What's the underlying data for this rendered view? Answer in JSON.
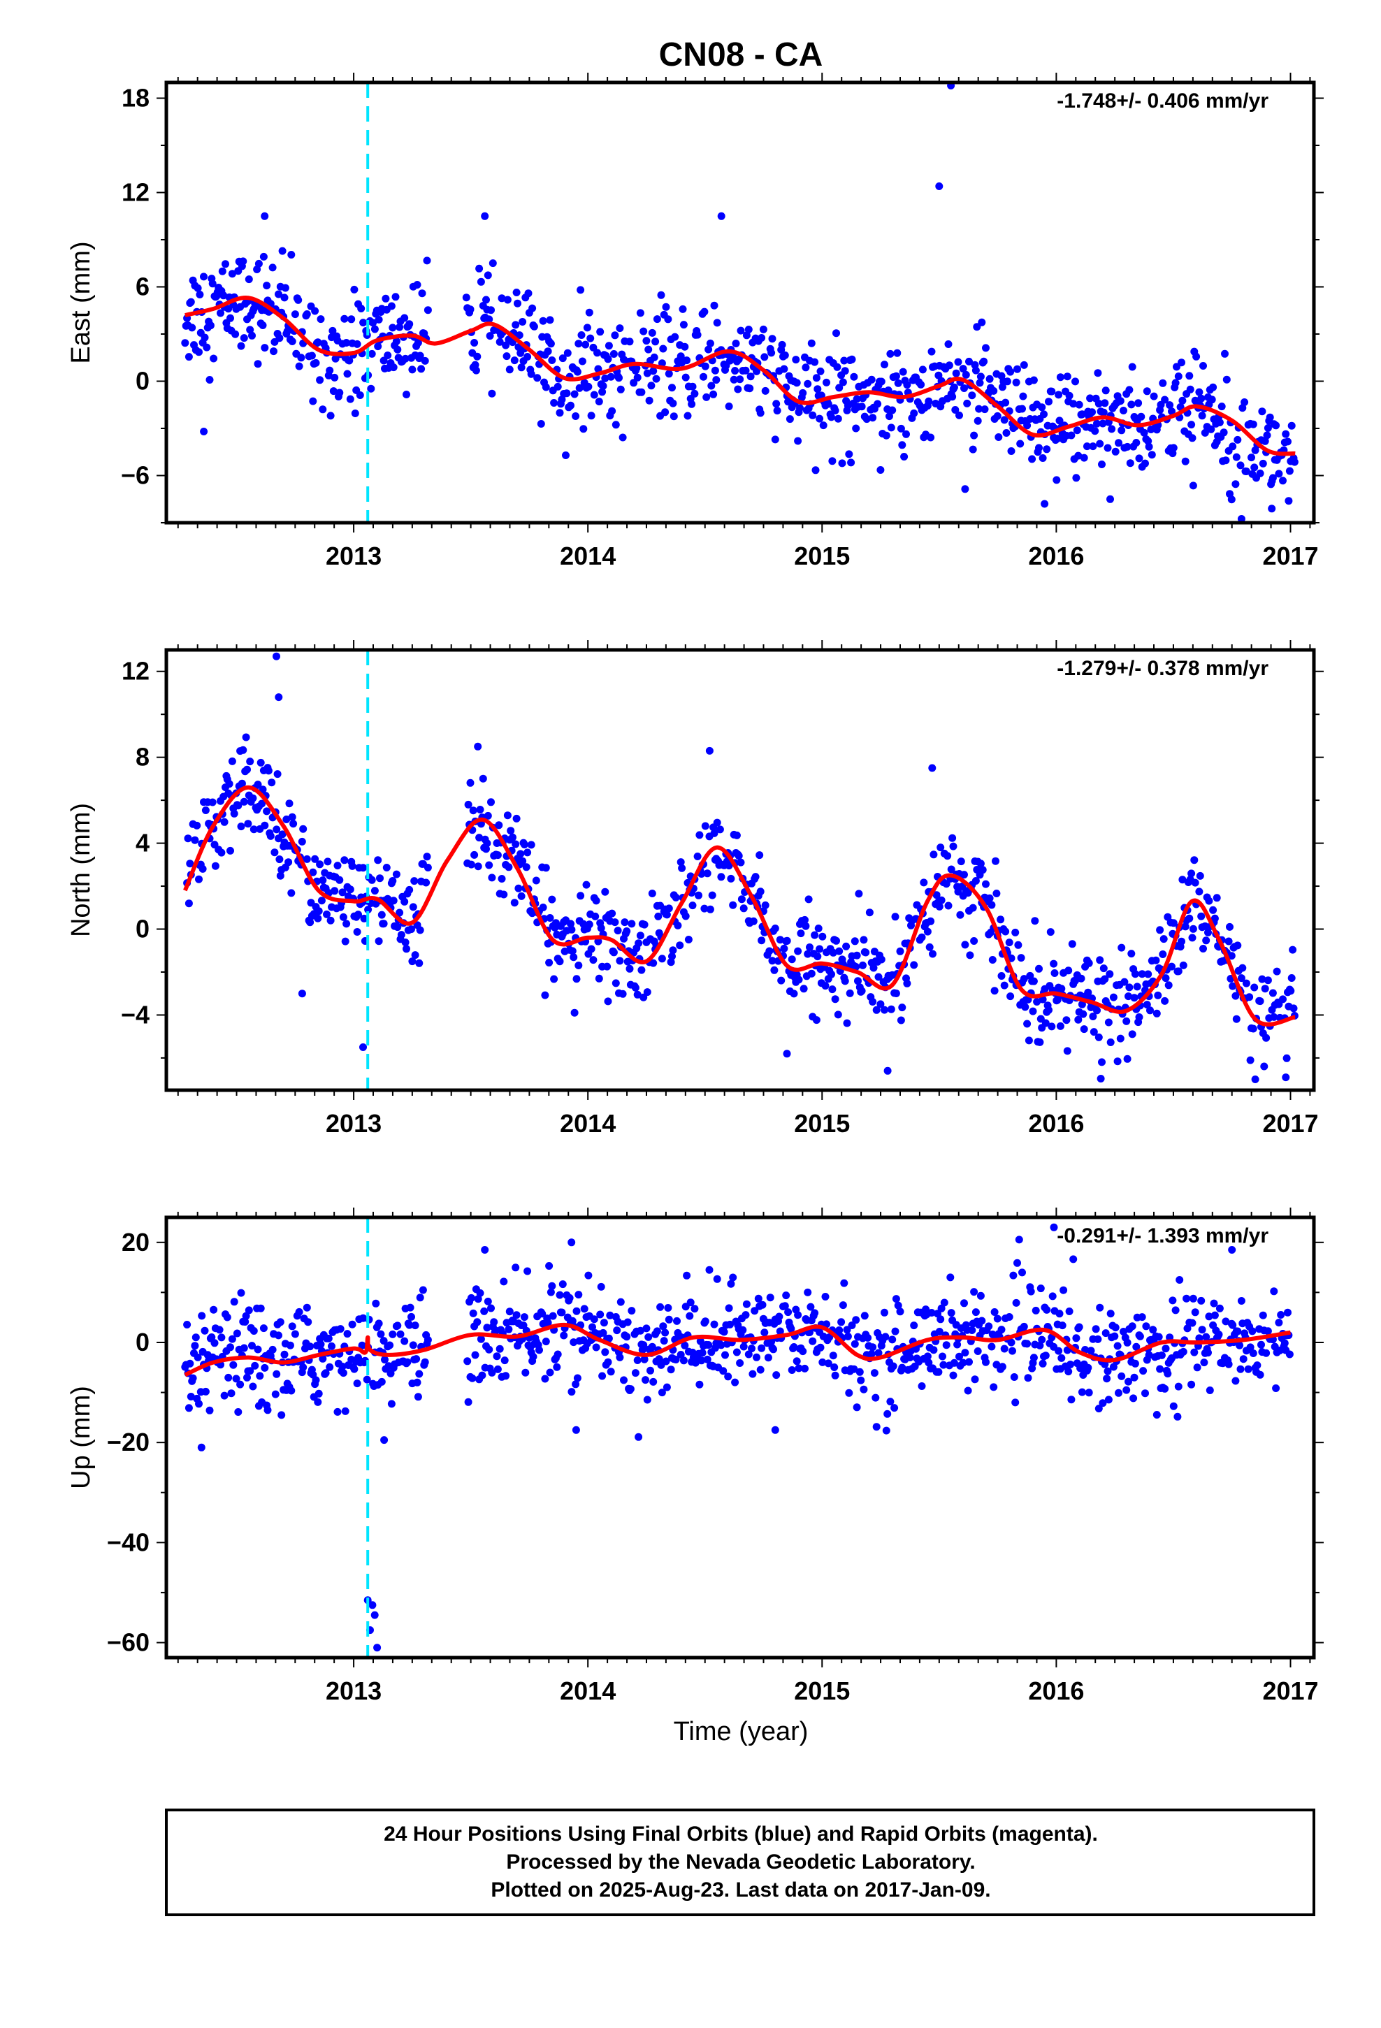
{
  "title": "CN08 - CA",
  "x_axis_label": "Time (year)",
  "footer": {
    "lines": [
      "24 Hour Positions Using Final Orbits (blue) and Rapid Orbits (magenta).",
      "Processed by the Nevada Geodetic Laboratory.",
      "Plotted on 2025-Aug-23. Last data on 2017-Jan-09."
    ]
  },
  "colors": {
    "points": "#0000ff",
    "fit": "#ff0000",
    "event_line": "#00e5ff",
    "frame": "#000000"
  },
  "chart_data": [
    {
      "type": "scatter",
      "component": "east",
      "ylabel": "East (mm)",
      "rate_label": "-1.748+/- 0.406 mm/yr",
      "xlim": [
        2012.2,
        2017.1
      ],
      "ylim": [
        -9,
        19
      ],
      "xticks": [
        2013,
        2014,
        2015,
        2016,
        2017
      ],
      "yticks": [
        -6,
        0,
        6,
        12,
        18
      ],
      "event_x": 2013.06,
      "scatter_sd": 1.7,
      "fit_x": [
        2012.28,
        2012.4,
        2012.55,
        2012.7,
        2012.85,
        2013.0,
        2013.1,
        2013.25,
        2013.35,
        2013.5,
        2013.6,
        2013.75,
        2013.9,
        2014.05,
        2014.2,
        2014.4,
        2014.6,
        2014.75,
        2014.9,
        2015.05,
        2015.2,
        2015.35,
        2015.5,
        2015.6,
        2015.75,
        2015.9,
        2016.05,
        2016.2,
        2016.35,
        2016.5,
        2016.6,
        2016.75,
        2016.9,
        2017.02
      ],
      "fit_y": [
        4.2,
        4.6,
        5.3,
        4.0,
        2.0,
        1.8,
        2.6,
        2.9,
        2.4,
        3.2,
        3.6,
        2.0,
        0.2,
        0.5,
        1.1,
        0.8,
        1.9,
        0.7,
        -1.3,
        -1.0,
        -0.7,
        -1.0,
        -0.3,
        0.1,
        -1.6,
        -3.4,
        -2.9,
        -2.3,
        -2.8,
        -2.2,
        -1.6,
        -2.5,
        -4.4,
        -4.6
      ],
      "outliers": [
        [
          2015.55,
          18.8
        ],
        [
          2015.5,
          12.4
        ],
        [
          2014.57,
          10.5
        ],
        [
          2012.36,
          -3.2
        ],
        [
          2012.62,
          10.5
        ],
        [
          2013.56,
          10.5
        ],
        [
          2015.95,
          -7.8
        ],
        [
          2016.92,
          -8.1
        ],
        [
          2016.23,
          -7.5
        ]
      ]
    },
    {
      "type": "scatter",
      "component": "north",
      "ylabel": "North (mm)",
      "rate_label": "-1.279+/- 0.378 mm/yr",
      "xlim": [
        2012.2,
        2017.1
      ],
      "ylim": [
        -7.5,
        13
      ],
      "xticks": [
        2013,
        2014,
        2015,
        2016,
        2017
      ],
      "yticks": [
        -4,
        0,
        4,
        8,
        12
      ],
      "event_x": 2013.06,
      "scatter_sd": 1.1,
      "fit_x": [
        2012.28,
        2012.4,
        2012.55,
        2012.7,
        2012.85,
        2013.0,
        2013.1,
        2013.25,
        2013.4,
        2013.55,
        2013.7,
        2013.85,
        2014.0,
        2014.1,
        2014.25,
        2014.4,
        2014.55,
        2014.7,
        2014.85,
        2015.0,
        2015.15,
        2015.3,
        2015.45,
        2015.55,
        2015.7,
        2015.85,
        2016.0,
        2016.15,
        2016.3,
        2016.45,
        2016.58,
        2016.7,
        2016.85,
        2017.02
      ],
      "fit_y": [
        1.8,
        4.8,
        6.6,
        4.8,
        1.8,
        1.3,
        1.4,
        0.3,
        3.2,
        5.1,
        2.8,
        -0.5,
        -0.4,
        -0.5,
        -1.5,
        1.2,
        3.8,
        1.5,
        -1.7,
        -1.6,
        -2.0,
        -2.6,
        1.3,
        2.5,
        1.0,
        -2.8,
        -3.0,
        -3.4,
        -3.8,
        -2.1,
        1.3,
        -0.6,
        -4.2,
        -4.1
      ],
      "outliers": [
        [
          2012.67,
          12.7
        ],
        [
          2012.68,
          10.8
        ],
        [
          2013.04,
          -5.5
        ],
        [
          2015.47,
          7.5
        ],
        [
          2014.52,
          8.3
        ],
        [
          2013.53,
          8.5
        ],
        [
          2012.78,
          -3.0
        ],
        [
          2014.85,
          -5.8
        ],
        [
          2015.28,
          -6.6
        ],
        [
          2016.98,
          -6.9
        ]
      ]
    },
    {
      "type": "scatter",
      "component": "up",
      "ylabel": "Up (mm)",
      "rate_label": "-0.291+/- 1.393 mm/yr",
      "xlim": [
        2012.2,
        2017.1
      ],
      "ylim": [
        -63,
        25
      ],
      "xticks": [
        2013,
        2014,
        2015,
        2016,
        2017
      ],
      "yticks": [
        -60,
        -40,
        -20,
        0,
        20
      ],
      "event_x": 2013.06,
      "scatter_sd": 5.0,
      "fit_x": [
        2012.28,
        2012.4,
        2012.55,
        2012.7,
        2012.85,
        2013.0,
        2013.05,
        2013.06,
        2013.07,
        2013.15,
        2013.3,
        2013.5,
        2013.7,
        2013.9,
        2014.05,
        2014.25,
        2014.45,
        2014.65,
        2014.85,
        2015.0,
        2015.15,
        2015.25,
        2015.45,
        2015.6,
        2015.75,
        2015.95,
        2016.1,
        2016.25,
        2016.45,
        2016.6,
        2016.8,
        2017.0
      ],
      "fit_y": [
        -6.5,
        -4.0,
        -3.0,
        -4.0,
        -2.5,
        -1.2,
        -2.0,
        1.0,
        -1.5,
        -2.5,
        -1.5,
        1.5,
        1.2,
        3.5,
        0.5,
        -2.5,
        1.0,
        0.5,
        1.5,
        3.0,
        -2.5,
        -3.0,
        0.5,
        1.0,
        0.5,
        2.5,
        -2.0,
        -3.5,
        0.0,
        0.0,
        0.5,
        2.0
      ],
      "outliers": [
        [
          2013.06,
          -51.5
        ],
        [
          2013.08,
          -52.5
        ],
        [
          2013.09,
          -54.5
        ],
        [
          2013.07,
          -57.5
        ],
        [
          2013.1,
          -61.0
        ],
        [
          2013.13,
          -19.5
        ],
        [
          2013.93,
          20.0
        ],
        [
          2015.99,
          23.0
        ],
        [
          2013.56,
          18.5
        ],
        [
          2013.95,
          -17.5
        ],
        [
          2014.8,
          -17.5
        ],
        [
          2016.75,
          18.5
        ],
        [
          2012.35,
          -21.0
        ]
      ]
    }
  ]
}
